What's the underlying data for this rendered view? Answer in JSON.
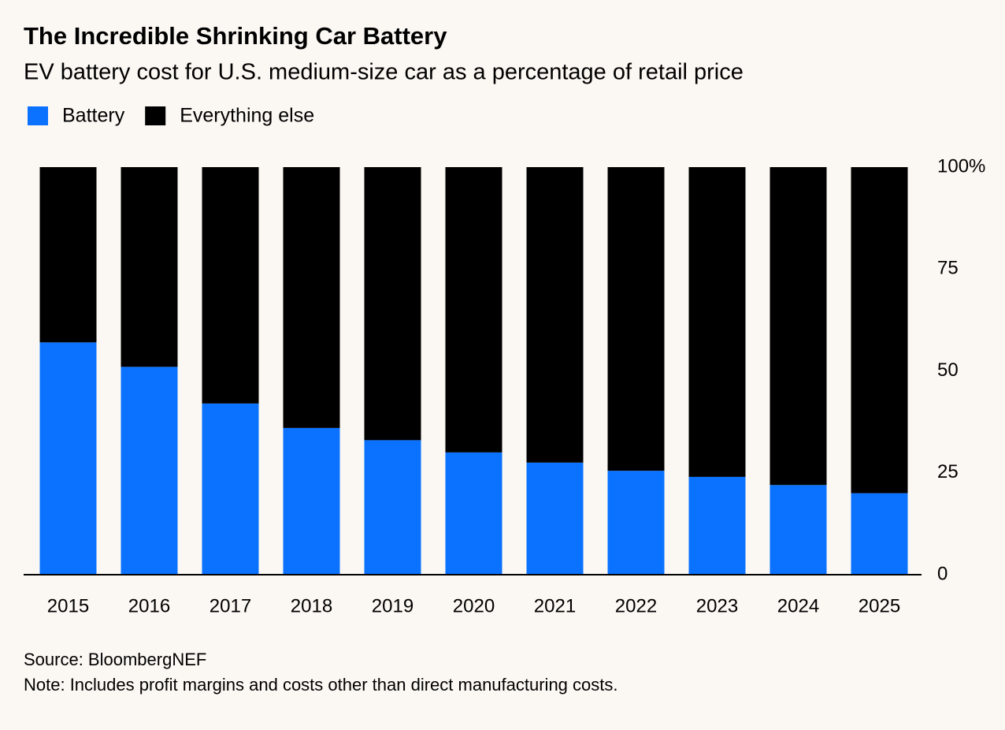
{
  "chart_data": {
    "type": "stacked_bar",
    "title": "The Incredible Shrinking Car Battery",
    "subtitle": "EV battery cost for U.S. medium-size car as a percentage of retail price",
    "categories": [
      "2015",
      "2016",
      "2017",
      "2018",
      "2019",
      "2020",
      "2021",
      "2022",
      "2023",
      "2024",
      "2025"
    ],
    "series": [
      {
        "name": "Battery",
        "color": "#0a72ff",
        "values": [
          57,
          51,
          42,
          36,
          33,
          30,
          27.5,
          25.5,
          24,
          22,
          20
        ]
      },
      {
        "name": "Everything else",
        "color": "#000000",
        "values": [
          43,
          49,
          58,
          64,
          67,
          70,
          72.5,
          74.5,
          76,
          78,
          80
        ]
      }
    ],
    "ylim": [
      0,
      100
    ],
    "yticks": [
      0,
      25,
      50,
      75,
      {
        "value": 100,
        "label": "100%"
      }
    ],
    "source": "Source: BloombergNEF",
    "note": "Note: Includes profit margins and costs other than direct manufacturing costs."
  }
}
